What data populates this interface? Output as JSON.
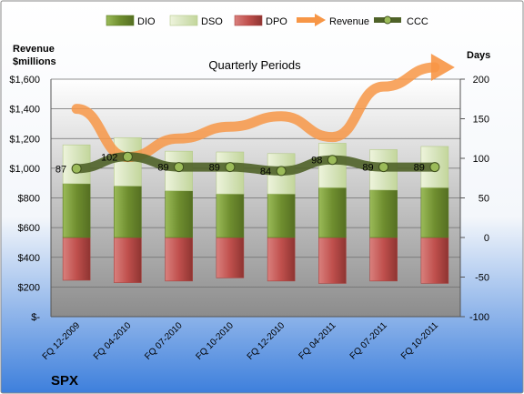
{
  "chart_data": {
    "type": "bar",
    "subtitle": "Quarterly Periods",
    "ylabel_left": "Revenue\n$millions",
    "ylabel_right": "Days",
    "ticker": "SPX",
    "categories": [
      "FQ 12-2009",
      "FQ 04-2010",
      "FQ 07-2010",
      "FQ 10-2010",
      "FQ 12-2010",
      "FQ 04-2011",
      "FQ 07-2011",
      "FQ 10-2011"
    ],
    "series": [
      {
        "name": "DIO",
        "axis": "right",
        "stack": "days",
        "values": [
          68,
          65,
          59,
          55,
          55,
          63,
          60,
          63
        ]
      },
      {
        "name": "DSO",
        "axis": "right",
        "stack": "days",
        "values": [
          49,
          61,
          50,
          53,
          51,
          56,
          51,
          52
        ]
      },
      {
        "name": "DPO",
        "axis": "right",
        "stack": "days",
        "values": [
          -54,
          -57,
          -55,
          -51,
          -55,
          -58,
          -55,
          -58
        ]
      },
      {
        "name": "Revenue",
        "axis": "left",
        "type": "line",
        "values": [
          1400,
          1075,
          1200,
          1280,
          1350,
          1210,
          1550,
          1680
        ]
      },
      {
        "name": "CCC",
        "axis": "right",
        "type": "line",
        "values": [
          87,
          102,
          89,
          89,
          84,
          98,
          89,
          89
        ]
      }
    ],
    "left_axis": {
      "ylim": [
        0,
        1600
      ],
      "ticks": [
        "$-",
        "$200",
        "$400",
        "$600",
        "$800",
        "$1,000",
        "$1,200",
        "$1,400",
        "$1,600"
      ]
    },
    "right_axis": {
      "ylim": [
        -100,
        200
      ],
      "ticks": [
        "-100",
        "-50",
        "0",
        "50",
        "100",
        "150",
        "200"
      ]
    },
    "ccc_labels": [
      "87",
      "102",
      "89",
      "89",
      "84",
      "98",
      "89",
      "89"
    ],
    "legend": {
      "placement": "top",
      "entries": [
        "DIO",
        "DSO",
        "DPO",
        "Revenue",
        "CCC"
      ]
    },
    "grid": true,
    "colors": {
      "DIO": "#77933c",
      "DSO": "#d7e4bd",
      "DPO": "#c0504d",
      "Revenue": "#f79646",
      "CCC": "#4f6228",
      "background_top": "#ffffff",
      "background_bottom": "#3d7fdc",
      "plot_top": "#ffffff",
      "plot_bottom": "#8c8c8c"
    }
  }
}
